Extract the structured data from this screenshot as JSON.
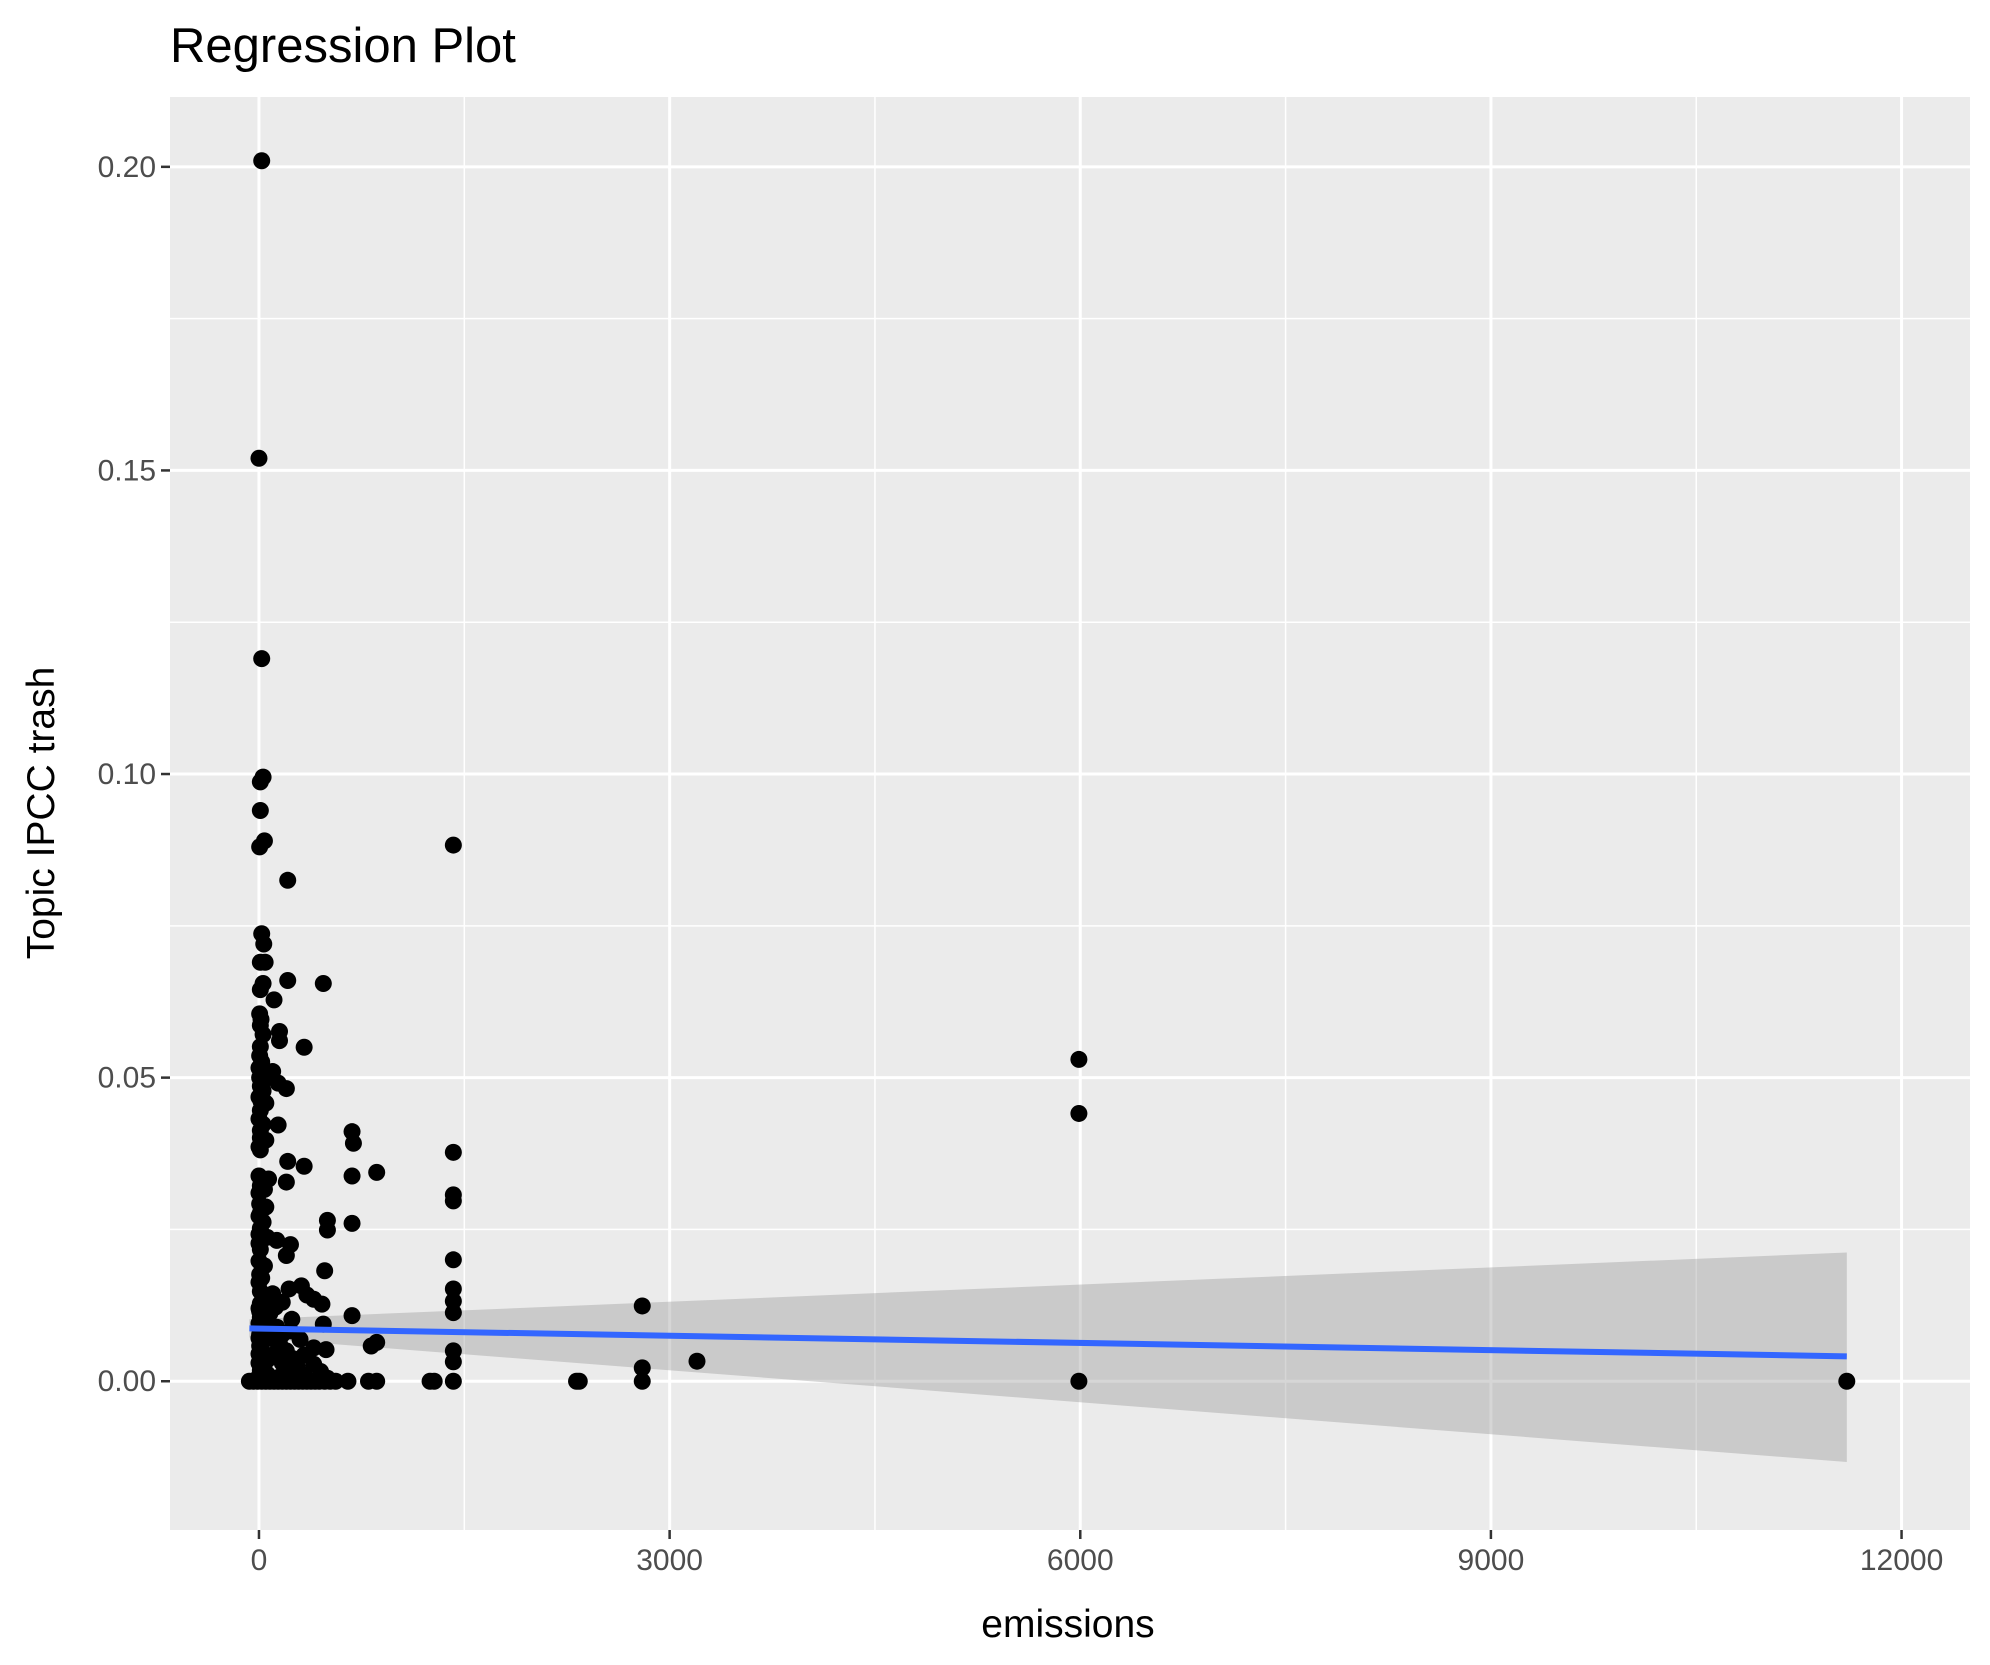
{
  "chart_data": {
    "type": "scatter",
    "title": "Regression Plot",
    "xlabel": "emissions",
    "ylabel": "Topic IPCC trash",
    "xlim": [
      -650,
      12500
    ],
    "ylim": [
      -0.0245,
      0.2115
    ],
    "x_ticks": [
      {
        "value": 0,
        "label": "0"
      },
      {
        "value": 3000,
        "label": "3000"
      },
      {
        "value": 6000,
        "label": "6000"
      },
      {
        "value": 9000,
        "label": "9000"
      },
      {
        "value": 12000,
        "label": "12000"
      }
    ],
    "y_ticks": [
      {
        "value": 0.0,
        "label": "0.00"
      },
      {
        "value": 0.05,
        "label": "0.05"
      },
      {
        "value": 0.1,
        "label": "0.10"
      },
      {
        "value": 0.15,
        "label": "0.15"
      },
      {
        "value": 0.2,
        "label": "0.20"
      }
    ],
    "grid": true,
    "background_color": "#ebebeb",
    "point_color": "#000000",
    "line_color": "#3366ff",
    "band_color": "#c8c8c8",
    "regression": {
      "x": [
        -70,
        11600
      ],
      "y": [
        0.0087,
        0.0041
      ],
      "ci_lower": [
        0.0072,
        -0.0133
      ],
      "ci_upper": [
        0.0102,
        0.0212
      ]
    },
    "points": [
      [
        20,
        0.201
      ],
      [
        0,
        0.152
      ],
      [
        20,
        0.119
      ],
      [
        30,
        0.0995
      ],
      [
        10,
        0.0987
      ],
      [
        10,
        0.094
      ],
      [
        40,
        0.089
      ],
      [
        5,
        0.088
      ],
      [
        210,
        0.0825
      ],
      [
        1420,
        0.0883
      ],
      [
        20,
        0.0737
      ],
      [
        35,
        0.072
      ],
      [
        10,
        0.069
      ],
      [
        45,
        0.069
      ],
      [
        210,
        0.066
      ],
      [
        30,
        0.0655
      ],
      [
        470,
        0.0655
      ],
      [
        10,
        0.0645
      ],
      [
        110,
        0.0628
      ],
      [
        5,
        0.0605
      ],
      [
        15,
        0.0596
      ],
      [
        10,
        0.0586
      ],
      [
        150,
        0.0576
      ],
      [
        30,
        0.0571
      ],
      [
        150,
        0.0561
      ],
      [
        10,
        0.0551
      ],
      [
        330,
        0.055
      ],
      [
        5,
        0.0536
      ],
      [
        20,
        0.0526
      ],
      [
        0,
        0.0516
      ],
      [
        100,
        0.051
      ],
      [
        5,
        0.05
      ],
      [
        40,
        0.0497
      ],
      [
        140,
        0.0491
      ],
      [
        10,
        0.0486
      ],
      [
        200,
        0.0482
      ],
      [
        30,
        0.0478
      ],
      [
        0,
        0.0468
      ],
      [
        15,
        0.0461
      ],
      [
        50,
        0.0458
      ],
      [
        10,
        0.0446
      ],
      [
        0,
        0.0432
      ],
      [
        30,
        0.0423
      ],
      [
        140,
        0.0422
      ],
      [
        10,
        0.0413
      ],
      [
        680,
        0.0411
      ],
      [
        10,
        0.0401
      ],
      [
        50,
        0.0397
      ],
      [
        690,
        0.0392
      ],
      [
        0,
        0.0386
      ],
      [
        10,
        0.0381
      ],
      [
        1420,
        0.0377
      ],
      [
        210,
        0.0362
      ],
      [
        330,
        0.0354
      ],
      [
        860,
        0.0344
      ],
      [
        0,
        0.0338
      ],
      [
        70,
        0.0333
      ],
      [
        680,
        0.0338
      ],
      [
        200,
        0.0328
      ],
      [
        10,
        0.0322
      ],
      [
        40,
        0.0316
      ],
      [
        0,
        0.031
      ],
      [
        1420,
        0.0307
      ],
      [
        1420,
        0.0297
      ],
      [
        5,
        0.0292
      ],
      [
        50,
        0.0287
      ],
      [
        10,
        0.0277
      ],
      [
        0,
        0.0272
      ],
      [
        500,
        0.0265
      ],
      [
        680,
        0.026
      ],
      [
        30,
        0.0262
      ],
      [
        10,
        0.0252
      ],
      [
        500,
        0.0249
      ],
      [
        0,
        0.0242
      ],
      [
        60,
        0.0237
      ],
      [
        130,
        0.0232
      ],
      [
        0,
        0.0227
      ],
      [
        230,
        0.0225
      ],
      [
        10,
        0.0217
      ],
      [
        200,
        0.0207
      ],
      [
        1420,
        0.02
      ],
      [
        0,
        0.0198
      ],
      [
        40,
        0.019
      ],
      [
        480,
        0.0182
      ],
      [
        5,
        0.0176
      ],
      [
        20,
        0.017
      ],
      [
        0,
        0.0163
      ],
      [
        310,
        0.0157
      ],
      [
        220,
        0.0152
      ],
      [
        1420,
        0.0152
      ],
      [
        10,
        0.0148
      ],
      [
        100,
        0.0144
      ],
      [
        350,
        0.0142
      ],
      [
        30,
        0.0138
      ],
      [
        400,
        0.0135
      ],
      [
        1420,
        0.0132
      ],
      [
        10,
        0.0128
      ],
      [
        170,
        0.013
      ],
      [
        460,
        0.0127
      ],
      [
        2800,
        0.0124
      ],
      [
        0,
        0.012
      ],
      [
        120,
        0.0122
      ],
      [
        5,
        0.0115
      ],
      [
        80,
        0.0112
      ],
      [
        1420,
        0.0113
      ],
      [
        680,
        0.0108
      ],
      [
        10,
        0.0105
      ],
      [
        20,
        0.01
      ],
      [
        240,
        0.0102
      ],
      [
        0,
        0.0095
      ],
      [
        60,
        0.0093
      ],
      [
        470,
        0.0094
      ],
      [
        5,
        0.0088
      ],
      [
        130,
        0.0089
      ],
      [
        10,
        0.0082
      ],
      [
        230,
        0.0083
      ],
      [
        5,
        0.0077
      ],
      [
        60,
        0.0075
      ],
      [
        170,
        0.0077
      ],
      [
        0,
        0.0071
      ],
      [
        100,
        0.007
      ],
      [
        300,
        0.0069
      ],
      [
        860,
        0.0064
      ],
      [
        10,
        0.0064
      ],
      [
        150,
        0.0062
      ],
      [
        820,
        0.0058
      ],
      [
        5,
        0.0058
      ],
      [
        400,
        0.0055
      ],
      [
        490,
        0.0052
      ],
      [
        1420,
        0.005
      ],
      [
        20,
        0.0051
      ],
      [
        200,
        0.005
      ],
      [
        0,
        0.0045
      ],
      [
        110,
        0.0044
      ],
      [
        330,
        0.0043
      ],
      [
        10,
        0.0039
      ],
      [
        250,
        0.0037
      ],
      [
        60,
        0.0035
      ],
      [
        1420,
        0.0032
      ],
      [
        3200,
        0.0033
      ],
      [
        0,
        0.003
      ],
      [
        170,
        0.003
      ],
      [
        400,
        0.0028
      ],
      [
        30,
        0.0024
      ],
      [
        280,
        0.0023
      ],
      [
        2800,
        0.0022
      ],
      [
        10,
        0.0018
      ],
      [
        200,
        0.0017
      ],
      [
        450,
        0.0016
      ],
      [
        60,
        0.0012
      ],
      [
        330,
        0.001
      ],
      [
        0,
        0.0008
      ],
      [
        150,
        0.0007
      ],
      [
        500,
        0.0005
      ],
      [
        5990,
        0.053
      ],
      [
        5990,
        0.0441
      ],
      [
        5990,
        0.0
      ],
      [
        -70,
        0.0
      ],
      [
        -40,
        0.0
      ],
      [
        -10,
        0.0
      ],
      [
        20,
        0.0
      ],
      [
        50,
        0.0
      ],
      [
        80,
        0.0
      ],
      [
        110,
        0.0
      ],
      [
        140,
        0.0
      ],
      [
        170,
        0.0
      ],
      [
        200,
        0.0
      ],
      [
        230,
        0.0
      ],
      [
        260,
        0.0
      ],
      [
        290,
        0.0
      ],
      [
        320,
        0.0
      ],
      [
        350,
        0.0
      ],
      [
        380,
        0.0
      ],
      [
        410,
        0.0
      ],
      [
        440,
        0.0
      ],
      [
        480,
        0.0
      ],
      [
        520,
        0.0
      ],
      [
        560,
        0.0
      ],
      [
        650,
        0.0
      ],
      [
        800,
        0.0
      ],
      [
        860,
        0.0
      ],
      [
        1250,
        0.0
      ],
      [
        1280,
        0.0
      ],
      [
        1420,
        0.0
      ],
      [
        2320,
        0.0
      ],
      [
        2340,
        0.0
      ],
      [
        2800,
        0.0
      ],
      [
        11600,
        0.0
      ]
    ]
  }
}
